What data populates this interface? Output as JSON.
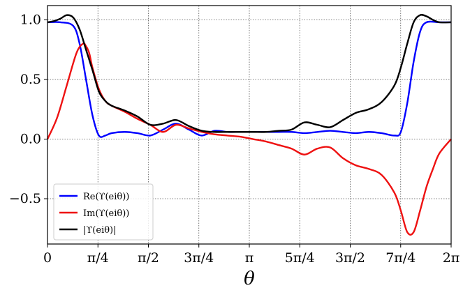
{
  "chart_data": {
    "type": "line",
    "xlabel": "θ",
    "ylabel": "",
    "xlim": [
      0,
      6.2832
    ],
    "ylim": [
      -0.88,
      1.12
    ],
    "grid": true,
    "legend_position": "lower-left",
    "x_ticks": [
      {
        "value": 0,
        "label": "0"
      },
      {
        "value": 0.7854,
        "label": "π/4"
      },
      {
        "value": 1.5708,
        "label": "π/2"
      },
      {
        "value": 2.3562,
        "label": "3π/4"
      },
      {
        "value": 3.1416,
        "label": "π"
      },
      {
        "value": 3.927,
        "label": "5π/4"
      },
      {
        "value": 4.7124,
        "label": "3π/2"
      },
      {
        "value": 5.4978,
        "label": "7π/4"
      },
      {
        "value": 6.2832,
        "label": "2π"
      }
    ],
    "y_ticks": [
      {
        "value": 1.0,
        "label": "1.0"
      },
      {
        "value": 0.5,
        "label": "0.5"
      },
      {
        "value": 0.0,
        "label": "0.0"
      },
      {
        "value": -0.5,
        "label": "−0.5"
      }
    ],
    "series": [
      {
        "name": "Re(ϒ(e^{iθ}))",
        "legend_text": "Re(ϒ(eiθ))",
        "color": "#0000ff",
        "x": [
          0,
          0.2,
          0.4,
          0.5,
          0.6,
          0.7,
          0.8,
          0.9,
          1.0,
          1.2,
          1.4,
          1.6,
          1.8,
          2.0,
          2.2,
          2.4,
          2.6,
          2.8,
          3.0,
          3.2,
          3.4,
          3.6,
          3.8,
          4.0,
          4.2,
          4.4,
          4.6,
          4.8,
          5.0,
          5.2,
          5.4,
          5.5,
          5.6,
          5.7,
          5.8,
          5.9,
          6.1,
          6.2832
        ],
        "y": [
          0.98,
          0.98,
          0.95,
          0.8,
          0.5,
          0.2,
          0.03,
          0.03,
          0.05,
          0.06,
          0.05,
          0.03,
          0.08,
          0.13,
          0.08,
          0.03,
          0.07,
          0.06,
          0.06,
          0.06,
          0.06,
          0.06,
          0.06,
          0.05,
          0.06,
          0.07,
          0.06,
          0.05,
          0.06,
          0.05,
          0.03,
          0.06,
          0.3,
          0.65,
          0.9,
          0.98,
          0.98,
          0.98
        ]
      },
      {
        "name": "Im(ϒ(e^{iθ}))",
        "legend_text": "Im(ϒ(eiθ))",
        "color": "#ee1111",
        "x": [
          0,
          0.15,
          0.3,
          0.45,
          0.55,
          0.6,
          0.65,
          0.7,
          0.8,
          0.9,
          1.0,
          1.2,
          1.4,
          1.6,
          1.8,
          2.0,
          2.2,
          2.4,
          2.6,
          2.8,
          3.0,
          3.2,
          3.4,
          3.6,
          3.8,
          4.0,
          4.2,
          4.4,
          4.6,
          4.8,
          5.0,
          5.2,
          5.4,
          5.5,
          5.6,
          5.7,
          5.8,
          5.9,
          6.0,
          6.1,
          6.2832
        ],
        "y": [
          0.0,
          0.18,
          0.45,
          0.72,
          0.8,
          0.78,
          0.72,
          0.6,
          0.42,
          0.32,
          0.28,
          0.23,
          0.17,
          0.12,
          0.06,
          0.12,
          0.09,
          0.06,
          0.04,
          0.03,
          0.02,
          0.0,
          -0.02,
          -0.05,
          -0.08,
          -0.13,
          -0.08,
          -0.07,
          -0.16,
          -0.22,
          -0.25,
          -0.3,
          -0.45,
          -0.6,
          -0.78,
          -0.78,
          -0.6,
          -0.4,
          -0.25,
          -0.12,
          0.0
        ]
      },
      {
        "name": "|ϒ(e^{iθ})|",
        "legend_text": "|ϒ(eiθ)|",
        "color": "#000000",
        "x": [
          0,
          0.1,
          0.2,
          0.3,
          0.4,
          0.5,
          0.6,
          0.7,
          0.8,
          0.9,
          1.0,
          1.2,
          1.4,
          1.6,
          1.8,
          2.0,
          2.2,
          2.4,
          2.6,
          2.8,
          3.0,
          3.2,
          3.4,
          3.6,
          3.8,
          4.0,
          4.2,
          4.4,
          4.6,
          4.8,
          5.0,
          5.2,
          5.4,
          5.5,
          5.6,
          5.7,
          5.8,
          5.9,
          6.0,
          6.1,
          6.2832
        ],
        "y": [
          0.98,
          0.99,
          1.01,
          1.04,
          1.02,
          0.92,
          0.75,
          0.58,
          0.4,
          0.32,
          0.28,
          0.24,
          0.19,
          0.12,
          0.13,
          0.16,
          0.11,
          0.07,
          0.06,
          0.06,
          0.06,
          0.06,
          0.06,
          0.07,
          0.08,
          0.14,
          0.12,
          0.1,
          0.16,
          0.22,
          0.25,
          0.31,
          0.45,
          0.6,
          0.8,
          0.98,
          1.04,
          1.03,
          1.0,
          0.98,
          0.98
        ]
      }
    ]
  }
}
